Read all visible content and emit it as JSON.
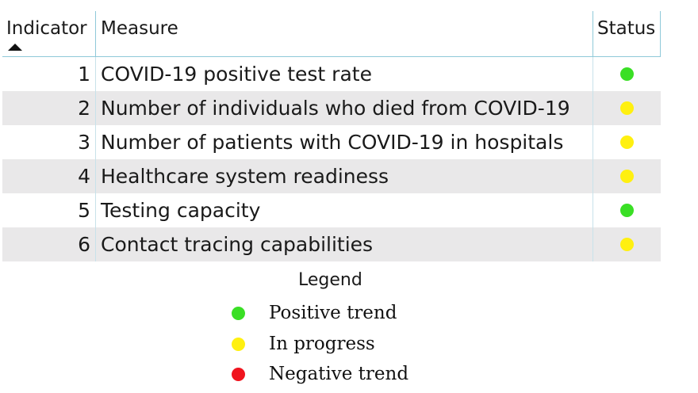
{
  "table": {
    "headers": {
      "indicator": "Indicator",
      "measure": "Measure",
      "status": "Status"
    },
    "sort": "ascending",
    "rows": [
      {
        "indicator": "1",
        "measure": "COVID-19 positive test rate",
        "status": "Positive trend",
        "color": "#3adf25"
      },
      {
        "indicator": "2",
        "measure": "Number of individuals who died from COVID-19",
        "status": "In progress",
        "color": "#fff010"
      },
      {
        "indicator": "3",
        "measure": "Number of patients with COVID-19 in hospitals",
        "status": "In progress",
        "color": "#fff010"
      },
      {
        "indicator": "4",
        "measure": "Healthcare system readiness",
        "status": "In progress",
        "color": "#fff010"
      },
      {
        "indicator": "5",
        "measure": "Testing capacity",
        "status": "Positive trend",
        "color": "#3adf25"
      },
      {
        "indicator": "6",
        "measure": "Contact tracing capabilities",
        "status": "In progress",
        "color": "#fff010"
      }
    ]
  },
  "legend": {
    "title": "Legend",
    "items": [
      {
        "label": "Positive trend",
        "color": "#3adf25"
      },
      {
        "label": "In progress",
        "color": "#fff010"
      },
      {
        "label": "Negative trend",
        "color": "#f0141e"
      }
    ]
  }
}
